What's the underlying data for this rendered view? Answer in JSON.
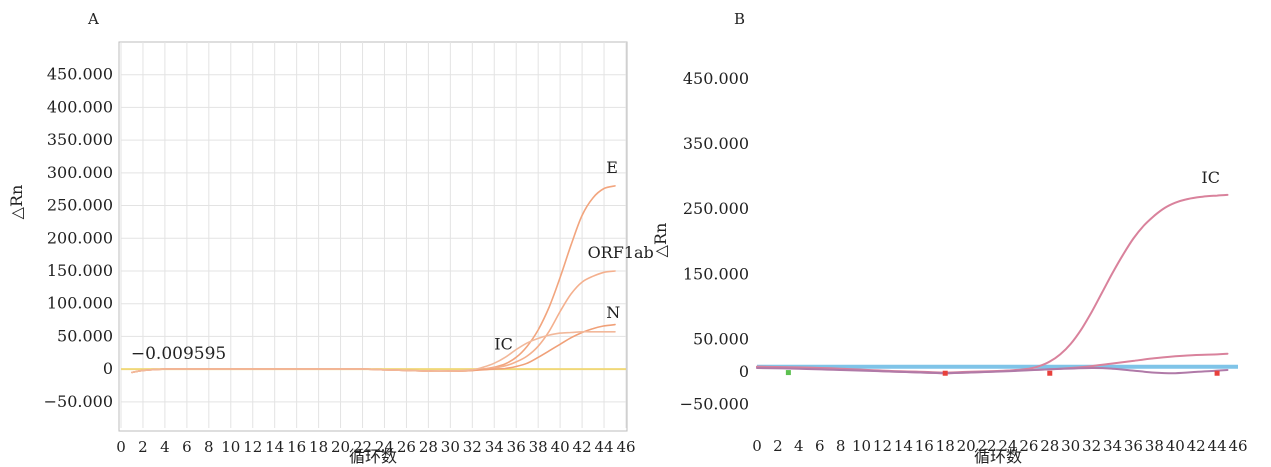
{
  "chart_data": [
    {
      "panel": "A",
      "type": "line",
      "xlabel": "循环数",
      "ylabel": "△Rn",
      "xlim": [
        0,
        46
      ],
      "ylim": [
        -90,
        500
      ],
      "x_ticks": [
        0,
        2,
        4,
        6,
        8,
        10,
        12,
        14,
        16,
        18,
        20,
        22,
        24,
        26,
        28,
        30,
        32,
        34,
        36,
        38,
        40,
        42,
        44,
        46
      ],
      "y_ticks": [
        {
          "value": -50,
          "label": "−50.000"
        },
        {
          "value": 0,
          "label": "0"
        },
        {
          "value": 50,
          "label": "50.000"
        },
        {
          "value": 100,
          "label": "100.000"
        },
        {
          "value": 150,
          "label": "150.000"
        },
        {
          "value": 200,
          "label": "200.000"
        },
        {
          "value": 250,
          "label": "250.000"
        },
        {
          "value": 300,
          "label": "300.000"
        },
        {
          "value": 350,
          "label": "350.000"
        },
        {
          "value": 400,
          "label": "400.000"
        },
        {
          "value": 450,
          "label": "450.000"
        }
      ],
      "grid": true,
      "threshold": {
        "value": 0,
        "label": "−0.009595",
        "color": "#f0d878"
      },
      "series": [
        {
          "name": "E",
          "color": "#f2a57e",
          "x": [
            1,
            2,
            4,
            6,
            8,
            10,
            12,
            14,
            16,
            18,
            20,
            22,
            24,
            26,
            28,
            30,
            32,
            33,
            34,
            35,
            36,
            37,
            38,
            39,
            40,
            41,
            42,
            43,
            44,
            45
          ],
          "y": [
            -5,
            -2,
            0,
            0,
            0,
            0,
            0,
            0,
            0,
            0,
            0,
            0,
            -1,
            -2,
            -3,
            -3,
            -2,
            0,
            3,
            8,
            18,
            35,
            60,
            95,
            140,
            190,
            235,
            262,
            276,
            280
          ]
        },
        {
          "name": "ORF1ab",
          "color": "#f4b08e",
          "x": [
            1,
            2,
            4,
            6,
            8,
            10,
            12,
            14,
            16,
            18,
            20,
            22,
            24,
            26,
            28,
            30,
            32,
            33,
            34,
            35,
            36,
            37,
            38,
            39,
            40,
            41,
            42,
            43,
            44,
            45
          ],
          "y": [
            -5,
            -2,
            0,
            0,
            0,
            0,
            0,
            0,
            0,
            0,
            0,
            0,
            -1,
            -2,
            -3,
            -3,
            -2,
            0,
            2,
            5,
            11,
            20,
            35,
            58,
            88,
            115,
            133,
            142,
            148,
            150
          ]
        },
        {
          "name": "N",
          "color": "#f0a078",
          "x": [
            1,
            2,
            4,
            6,
            8,
            10,
            12,
            14,
            16,
            18,
            20,
            22,
            24,
            26,
            28,
            30,
            32,
            34,
            35,
            36,
            37,
            38,
            39,
            40,
            41,
            42,
            43,
            44,
            45
          ],
          "y": [
            -5,
            -2,
            0,
            0,
            0,
            0,
            0,
            0,
            0,
            0,
            0,
            0,
            -1,
            -2,
            -3,
            -3,
            -2,
            0,
            1,
            4,
            9,
            18,
            28,
            38,
            48,
            56,
            62,
            66,
            68
          ]
        },
        {
          "name": "IC",
          "color": "#f2b89a",
          "x": [
            1,
            2,
            4,
            6,
            8,
            10,
            12,
            14,
            16,
            18,
            20,
            22,
            24,
            26,
            28,
            30,
            32,
            33,
            34,
            35,
            36,
            37,
            38,
            39,
            40,
            41,
            42,
            43,
            44,
            45
          ],
          "y": [
            -5,
            -2,
            0,
            0,
            0,
            0,
            0,
            0,
            0,
            0,
            0,
            0,
            -1,
            -2,
            -3,
            -3,
            -1,
            3,
            9,
            18,
            30,
            40,
            47,
            52,
            55,
            56,
            57,
            57,
            57,
            57
          ]
        }
      ],
      "annotations": [
        {
          "text": "E",
          "x": 44.2,
          "y": 300
        },
        {
          "text": "ORF1ab",
          "x": 42.5,
          "y": 170
        },
        {
          "text": "N",
          "x": 44.2,
          "y": 78
        },
        {
          "text": "IC",
          "x": 34.0,
          "y": 30
        }
      ]
    },
    {
      "panel": "B",
      "type": "line",
      "xlabel": "循环数",
      "ylabel": "△Rn",
      "xlim": [
        0,
        46
      ],
      "ylim": [
        -80,
        510
      ],
      "x_ticks": [
        0,
        2,
        4,
        6,
        8,
        10,
        12,
        14,
        16,
        18,
        20,
        22,
        24,
        26,
        28,
        30,
        32,
        34,
        36,
        38,
        40,
        42,
        44,
        46
      ],
      "y_ticks": [
        {
          "value": -50,
          "label": "−50.000"
        },
        {
          "value": 0,
          "label": "0"
        },
        {
          "value": 50,
          "label": "50.000"
        },
        {
          "value": 150,
          "label": "150.000"
        },
        {
          "value": 250,
          "label": "250.000"
        },
        {
          "value": 350,
          "label": "350.000"
        },
        {
          "value": 450,
          "label": "450.000"
        }
      ],
      "grid": false,
      "threshold": {
        "value": 8,
        "color": "#7fc4e8"
      },
      "series": [
        {
          "name": "IC",
          "color": "#d9829c",
          "x": [
            0,
            2,
            4,
            6,
            8,
            10,
            12,
            14,
            16,
            18,
            20,
            22,
            24,
            26,
            27,
            28,
            29,
            30,
            31,
            32,
            33,
            34,
            35,
            36,
            37,
            38,
            39,
            40,
            41,
            42,
            43,
            44,
            45
          ],
          "y": [
            8,
            7,
            6,
            5,
            4,
            3,
            1,
            0,
            -1,
            -2,
            -1,
            0,
            2,
            5,
            9,
            16,
            27,
            43,
            65,
            92,
            122,
            152,
            180,
            205,
            225,
            240,
            252,
            260,
            265,
            268,
            270,
            271,
            272
          ]
        },
        {
          "color": "#d9829c",
          "x": [
            0,
            4,
            8,
            12,
            16,
            18,
            20,
            24,
            28,
            30,
            32,
            34,
            36,
            38,
            40,
            42,
            44,
            45
          ],
          "y": [
            8,
            7,
            5,
            2,
            0,
            -1,
            0,
            2,
            4,
            6,
            9,
            13,
            17,
            21,
            24,
            26,
            27,
            28
          ]
        },
        {
          "color": "#b07aa8",
          "x": [
            0,
            4,
            8,
            12,
            16,
            18,
            20,
            24,
            28,
            32,
            34,
            36,
            38,
            40,
            42,
            44,
            45
          ],
          "y": [
            6,
            5,
            3,
            1,
            -1,
            -2,
            -1,
            1,
            4,
            6,
            5,
            2,
            -1,
            -2,
            0,
            2,
            3
          ]
        }
      ],
      "markers": [
        {
          "x": 18,
          "y": -2,
          "color": "#e8413c"
        },
        {
          "x": 28,
          "y": -2,
          "color": "#e8413c"
        },
        {
          "x": 44,
          "y": -2,
          "color": "#e8413c"
        },
        {
          "x": 3,
          "y": -1,
          "color": "#5cc050"
        }
      ],
      "annotations": [
        {
          "text": "IC",
          "x": 42.5,
          "y": 290
        }
      ]
    }
  ],
  "panels": {
    "a": {
      "label": "A",
      "ylabel": "△Rn",
      "xlabel": "循环数"
    },
    "b": {
      "label": "B",
      "ylabel": "△Rn",
      "xlabel": "循环数"
    }
  }
}
